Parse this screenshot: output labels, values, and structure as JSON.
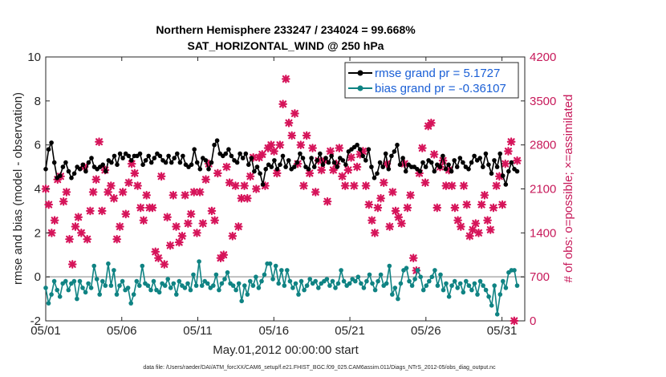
{
  "chart_data": {
    "type": "line",
    "title_line1": "Northern Hemisphere 233247 / 234024 = 99.668%",
    "title_line2": "SAT_HORIZONTAL_WIND @ 250 hPa",
    "xlabel": "May.01,2012 00:00:00 start",
    "ylabel_left": "rmse and bias (model - observation)",
    "ylabel_right": "# of obs: o=possible; ×=assimilated",
    "footnote": "data file: /Users/raeder/DAI/ATM_forcXX/CAM6_setup/f.e21.FHIST_BGC.f09_025.CAM6assim.011/Diags_NTrS_2012-05/obs_diag_output.nc",
    "xlim": [
      0,
      31.5
    ],
    "ylim_left": [
      -2,
      10
    ],
    "ylim_right": [
      0,
      4200
    ],
    "x_ticks": [
      0,
      5,
      10,
      15,
      20,
      25,
      30
    ],
    "x_tick_labels": [
      "05/01",
      "05/06",
      "05/11",
      "05/16",
      "05/21",
      "05/26",
      "05/31"
    ],
    "y_ticks_left": [
      "-2",
      "0",
      "2",
      "4",
      "6",
      "8",
      "10"
    ],
    "y_ticks_right": [
      "0",
      "700",
      "1400",
      "2100",
      "2800",
      "3500",
      "4200"
    ],
    "legend": {
      "rmse_label": "rmse grand pr = 5.1727",
      "bias_label": "bias grand pr = -0.36107"
    },
    "colors": {
      "rmse": "#000000",
      "bias": "#0f8383",
      "obs": "#d6145a",
      "zero_line": "#bfbfbf"
    },
    "series": [
      {
        "name": "rmse",
        "values": [
          4.9,
          5.8,
          6.1,
          5.2,
          4.5,
          4.6,
          5.0,
          5.2,
          4.8,
          4.5,
          4.7,
          5.0,
          4.9,
          5.1,
          4.8,
          5.2,
          5.4,
          5.0,
          4.9,
          5.0,
          5.1,
          4.8,
          5.3,
          5.2,
          5.5,
          5.1,
          5.6,
          5.4,
          5.6,
          5.5,
          5.3,
          5.5,
          5.5,
          5.6,
          5.1,
          5.3,
          5.5,
          5.2,
          5.4,
          5.6,
          5.5,
          5.3,
          5.2,
          5.5,
          5.2,
          5.4,
          5.6,
          5.2,
          5.5,
          5.1,
          5.0,
          5.1,
          5.8,
          5.2,
          4.9,
          5.4,
          5.3,
          4.9,
          5.2,
          6.0,
          6.2,
          5.6,
          5.5,
          5.6,
          5.8,
          5.5,
          5.3,
          5.2,
          5.6,
          5.4,
          5.6,
          5.1,
          5.4,
          4.8,
          5.0,
          4.7,
          4.2,
          4.9,
          5.1,
          5.0,
          5.3,
          4.9,
          5.1,
          5.5,
          5.0,
          5.3,
          4.9,
          5.0,
          5.2,
          5.6,
          5.4,
          5.0,
          4.9,
          5.4,
          5.0,
          5.3,
          5.6,
          5.1,
          5.4,
          5.2,
          5.5,
          5.2,
          5.0,
          5.4,
          5.3,
          5.1,
          5.7,
          5.8,
          5.9,
          6.0,
          5.8,
          5.5,
          5.3,
          5.8,
          5.0,
          4.5,
          4.7,
          5.2,
          5.0,
          5.6,
          4.9,
          5.5,
          5.7,
          6.0,
          5.1,
          5.4,
          4.8,
          5.1,
          5.0,
          5.0,
          4.9,
          4.8,
          5.2,
          5.0,
          5.3,
          5.2,
          4.8,
          5.1,
          5.0,
          5.5,
          4.9,
          5.1,
          4.8,
          5.3,
          5.0,
          5.4,
          5.2,
          5.0,
          4.9,
          5.2,
          5.5,
          5.3,
          5.4,
          5.0,
          5.6,
          5.1,
          4.7,
          5.3,
          5.0,
          5.6,
          4.6,
          4.2,
          4.8,
          5.2,
          4.9,
          4.8
        ]
      },
      {
        "name": "bias",
        "values": [
          -0.5,
          -1.2,
          -0.8,
          -0.2,
          -0.6,
          -0.9,
          -0.3,
          -0.2,
          -0.6,
          -0.3,
          -0.2,
          -1.0,
          -0.2,
          -0.5,
          -0.7,
          -0.3,
          -0.5,
          0.5,
          -0.1,
          -0.8,
          -0.2,
          -0.4,
          0.6,
          -0.4,
          0.3,
          -0.8,
          -0.4,
          -0.2,
          -0.6,
          -0.5,
          -1.2,
          -0.8,
          -0.2,
          -0.4,
          0.5,
          -0.3,
          -0.4,
          -0.6,
          -0.2,
          -0.6,
          -0.7,
          -0.3,
          -0.4,
          -0.1,
          -0.5,
          -0.3,
          -0.8,
          -0.2,
          -0.4,
          -0.5,
          -0.3,
          -0.6,
          0.1,
          -0.4,
          0.7,
          -0.4,
          -0.2,
          -0.3,
          -0.5,
          -0.4,
          0.1,
          -0.6,
          -0.3,
          -0.1,
          0.2,
          -0.3,
          -0.4,
          -0.6,
          -0.3,
          -1.1,
          -0.4,
          -0.8,
          -0.2,
          -0.4,
          0.0,
          -0.5,
          -0.2,
          0.1,
          0.6,
          0.6,
          -0.1,
          0.5,
          -0.3,
          0.3,
          -0.4,
          0.3,
          -0.2,
          -0.5,
          -0.3,
          -0.8,
          -0.2,
          -0.6,
          -0.4,
          -0.1,
          -0.3,
          -0.2,
          -0.5,
          -0.3,
          -0.2,
          -0.1,
          -0.4,
          -0.2,
          -0.5,
          -0.3,
          0.3,
          -0.2,
          -0.4,
          -0.3,
          -0.1,
          -0.2,
          0.0,
          -0.3,
          -0.5,
          -0.2,
          0.1,
          -0.3,
          -0.6,
          -0.2,
          0.1,
          -0.4,
          -0.3,
          0.5,
          -0.8,
          -0.5,
          -1.0,
          -0.3,
          0.3,
          0.4,
          -0.2,
          -0.4,
          -0.1,
          0.3,
          0.0,
          -0.6,
          -0.4,
          -0.2,
          0.0,
          0.3,
          -0.4,
          0.1,
          -0.6,
          -0.3,
          -0.9,
          -0.4,
          -0.2,
          -0.5,
          -0.3,
          -0.7,
          -0.2,
          -0.4,
          -0.6,
          -0.3,
          -0.8,
          -0.2,
          -0.4,
          -0.6,
          -0.9,
          -1.3,
          -0.4,
          -1.7,
          -0.8,
          -0.2,
          -0.5,
          0.2,
          0.3,
          0.3,
          -0.4
        ]
      }
    ],
    "obs_assimilated": [
      2100,
      1850,
      1400,
      1600,
      2250,
      2300,
      1900,
      2050,
      1300,
      900,
      1500,
      1650,
      1400,
      2450,
      1300,
      1750,
      2050,
      2250,
      2850,
      1750,
      2400,
      2050,
      2150,
      1950,
      1300,
      1500,
      2050,
      1700,
      2200,
      2500,
      2350,
      2150,
      1800,
      1600,
      2000,
      1800,
      1800,
      1100,
      1000,
      2300,
      900,
      1650,
      1200,
      2000,
      1500,
      1250,
      1350,
      2000,
      1550,
      1700,
      2050,
      1400,
      2050,
      1550,
      2250,
      2500,
      1750,
      1600,
      2350,
      1000,
      1050,
      2450,
      2200,
      1350,
      2150,
      1500,
      1950,
      2150,
      1950,
      2300,
      2600,
      2100,
      2600,
      2650,
      2150,
      2750,
      2800,
      2700,
      2350,
      2800,
      3450,
      3850,
      3150,
      2950,
      3300,
      2500,
      2800,
      2150,
      2950,
      2350,
      2750,
      2050,
      2550,
      2400,
      2550,
      1900,
      2700,
      2400,
      2500,
      2750,
      2300,
      2150,
      2400,
      2600,
      2150,
      2450,
      2650,
      2700,
      2150,
      1850,
      1600,
      1400,
      1800,
      1950,
      2200,
      2500,
      1500,
      2050,
      1750,
      1650,
      1550,
      2500,
      1800,
      2000,
      1000,
      800,
      2350,
      2750,
      2200,
      3100,
      3150,
      2650,
      1800,
      2450,
      2550,
      2150,
      2400,
      2150,
      1800,
      1600,
      1500,
      2150,
      1850,
      1350,
      1450,
      1550,
      1400,
      1850,
      2000,
      1600,
      1450,
      1800,
      2150,
      2300,
      1850,
      2500,
      2700,
      2850,
      0,
      2550
    ]
  }
}
